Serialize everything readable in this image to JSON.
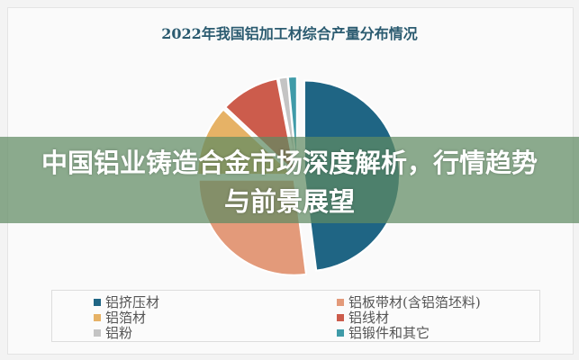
{
  "chart_data": {
    "type": "pie",
    "title": "2022年我国铝加工材综合产量分布情况",
    "slices": [
      {
        "name": "铝挤压材",
        "value": 48,
        "color": "#1f6584"
      },
      {
        "name": "铝板带材(含铝箔坯料)",
        "value": 27,
        "color": "#e39a7a"
      },
      {
        "name": "铝箔材",
        "value": 12,
        "color": "#e6b266"
      },
      {
        "name": "铝线材",
        "value": 10,
        "color": "#cc5c4c"
      },
      {
        "name": "铝粉",
        "value": 1.5,
        "color": "#c4c4c4"
      },
      {
        "name": "铝锻件和其它",
        "value": 1.5,
        "color": "#3f9ba8"
      }
    ],
    "legend_position": "bottom"
  },
  "banner": {
    "headline": "中国铝业铸造合金市场深度解析，行情趋势与前景展望"
  }
}
